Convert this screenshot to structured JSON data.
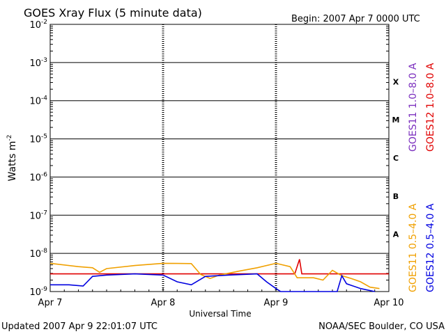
{
  "chart_data": {
    "type": "line",
    "title": "GOES Xray Flux (5 minute data)",
    "begin_label": "Begin:  2007 Apr 7 0000 UTC",
    "xlabel": "Universal Time",
    "ylabel_base": "Watts m",
    "ylabel_exp": "-2",
    "y_scale": "log",
    "ylim": [
      1e-09,
      0.01
    ],
    "xlim": [
      "2007-04-07T00:00Z",
      "2007-04-10T00:00Z"
    ],
    "x_ticks": [
      "Apr 7",
      "Apr 8",
      "Apr 9",
      "Apr 10"
    ],
    "y_ticks": [
      {
        "base": "10",
        "exp": "-2"
      },
      {
        "base": "10",
        "exp": "-3"
      },
      {
        "base": "10",
        "exp": "-4"
      },
      {
        "base": "10",
        "exp": "-5"
      },
      {
        "base": "10",
        "exp": "-6"
      },
      {
        "base": "10",
        "exp": "-7"
      },
      {
        "base": "10",
        "exp": "-8"
      },
      {
        "base": "10",
        "exp": "-9"
      }
    ],
    "flare_classes": [
      "X",
      "M",
      "C",
      "B",
      "A"
    ],
    "grid": true,
    "legend": {
      "placement": "right, vertical",
      "entries": [
        {
          "label": "GOES11 1.0–8.0 A",
          "color": "#7b2fbe"
        },
        {
          "label": "GOES12 1.0–8.0 A",
          "color": "#e00000"
        },
        {
          "label": "GOES11 0.5–4.0 A",
          "color": "#f0a000"
        },
        {
          "label": "GOES12 0.5–4.0 A",
          "color": "#0000e0"
        }
      ]
    },
    "series": [
      {
        "name": "GOES12 1.0–8.0 A",
        "color": "#e00000",
        "x": [
          "2007-04-07T00:00Z",
          "2007-04-09T00:00Z",
          "2007-04-09T04:00Z",
          "2007-04-09T05:00Z",
          "2007-04-09T05:30Z",
          "2007-04-10T00:00Z"
        ],
        "y": [
          2.9e-09,
          2.9e-09,
          2.9e-09,
          7e-09,
          2.9e-09,
          2.9e-09
        ]
      },
      {
        "name": "GOES11 0.5–4.0 A",
        "color": "#f0a000",
        "x": [
          "2007-04-07T00:00Z",
          "2007-04-07T06:00Z",
          "2007-04-07T09:00Z",
          "2007-04-07T10:30Z",
          "2007-04-07T12:00Z",
          "2007-04-07T18:00Z",
          "2007-04-08T00:00Z",
          "2007-04-08T06:00Z",
          "2007-04-08T08:00Z",
          "2007-04-08T10:00Z",
          "2007-04-08T12:00Z",
          "2007-04-08T16:00Z",
          "2007-04-08T20:00Z",
          "2007-04-09T00:00Z",
          "2007-04-09T03:00Z",
          "2007-04-09T04:30Z",
          "2007-04-09T08:00Z",
          "2007-04-09T10:00Z",
          "2007-04-09T12:00Z",
          "2007-04-09T14:00Z",
          "2007-04-09T16:00Z",
          "2007-04-09T18:00Z",
          "2007-04-09T20:00Z",
          "2007-04-09T22:00Z"
        ],
        "y": [
          5.5e-09,
          4.5e-09,
          4.2e-09,
          3.2e-09,
          4e-09,
          4.8e-09,
          5.5e-09,
          5.4e-09,
          2.8e-09,
          2.2e-09,
          2.7e-09,
          3.4e-09,
          4.2e-09,
          5.5e-09,
          4.5e-09,
          2.3e-09,
          2.3e-09,
          2e-09,
          3.6e-09,
          2.6e-09,
          2.2e-09,
          1.8e-09,
          1.3e-09,
          1.2e-09
        ]
      },
      {
        "name": "GOES12 0.5–4.0 A",
        "color": "#0000e0",
        "x": [
          "2007-04-07T00:00Z",
          "2007-04-07T04:00Z",
          "2007-04-07T07:00Z",
          "2007-04-07T09:00Z",
          "2007-04-07T12:00Z",
          "2007-04-07T18:00Z",
          "2007-04-08T00:00Z",
          "2007-04-08T03:00Z",
          "2007-04-08T06:00Z",
          "2007-04-08T09:00Z",
          "2007-04-08T14:00Z",
          "2007-04-08T20:00Z",
          "2007-04-08T22:00Z",
          "2007-04-09T00:00Z",
          "2007-04-09T01:00Z",
          "2007-04-09T04:00Z",
          "2007-04-09T10:00Z",
          "2007-04-09T13:00Z",
          "2007-04-09T14:00Z",
          "2007-04-09T15:00Z",
          "2007-04-09T18:00Z",
          "2007-04-09T21:00Z"
        ],
        "y": [
          1.5e-09,
          1.5e-09,
          1.4e-09,
          2.5e-09,
          2.7e-09,
          2.9e-09,
          2.7e-09,
          1.8e-09,
          1.5e-09,
          2.5e-09,
          2.7e-09,
          2.9e-09,
          1.8e-09,
          1.2e-09,
          1e-09,
          1e-09,
          1e-09,
          1e-09,
          2.6e-09,
          1.6e-09,
          1.2e-09,
          1e-09
        ]
      }
    ]
  },
  "footer": {
    "updated": "Updated 2007 Apr  9 22:01:07 UTC",
    "source": "NOAA/SEC Boulder, CO USA"
  }
}
